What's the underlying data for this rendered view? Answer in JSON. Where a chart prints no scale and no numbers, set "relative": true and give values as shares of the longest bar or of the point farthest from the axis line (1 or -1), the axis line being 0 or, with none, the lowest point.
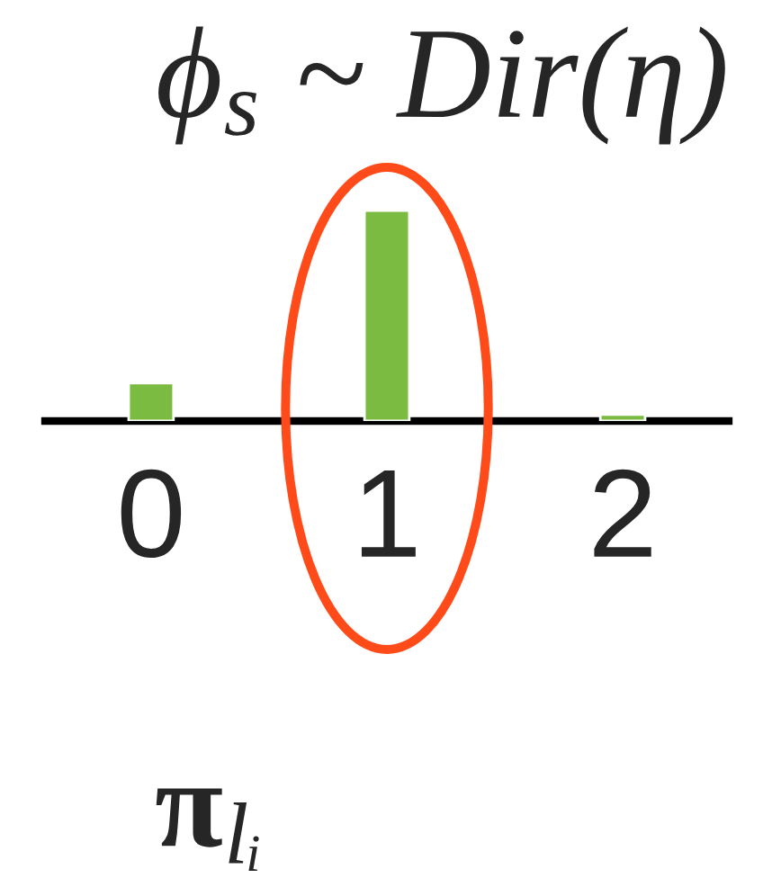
{
  "chart_data": {
    "type": "bar",
    "title": "ϕ$_{s}$ ~ Dir(η)",
    "categories": [
      "0",
      "1",
      "2"
    ],
    "values": [
      0.18,
      1,
      0.03
    ],
    "color": "#7bbb42",
    "relative": true,
    "annotations": [
      "π$_{lᵢ}$"
    ]
  }
}
